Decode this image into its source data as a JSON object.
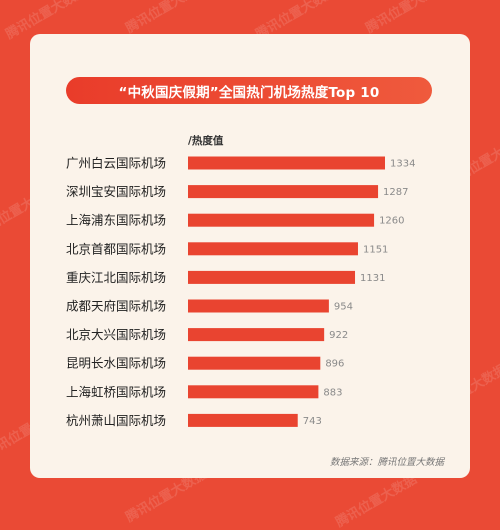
{
  "watermark": "腾讯位置大数据",
  "title": "“中秋国庆假期”全国热门机场热度Top 10",
  "unit_label": "/热度值",
  "source": "数据来源：腾讯位置大数据",
  "colors": {
    "background": "#ea4a35",
    "card": "#fbf3ea",
    "bar": "#e94430",
    "title_pill": "#e93c2a"
  },
  "chart_data": {
    "type": "bar",
    "orientation": "horizontal",
    "title": "“中秋国庆假期”全国热门机场热度Top 10",
    "xlabel": "/热度值",
    "ylabel": "",
    "categories": [
      "广州白云国际机场",
      "深圳宝安国际机场",
      "上海浦东国际机场",
      "北京首都国际机场",
      "重庆江北国际机场",
      "成都天府国际机场",
      "北京大兴国际机场",
      "昆明长水国际机场",
      "上海虹桥国际机场",
      "杭州萧山国际机场"
    ],
    "values": [
      1334,
      1287,
      1260,
      1151,
      1131,
      954,
      922,
      896,
      883,
      743
    ],
    "grid": false,
    "legend": "none"
  }
}
